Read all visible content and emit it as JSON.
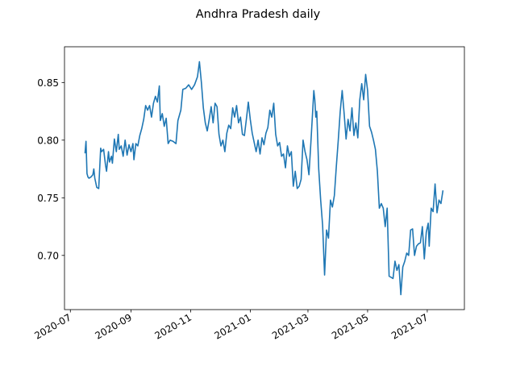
{
  "chart_data": {
    "type": "line",
    "title": "Andhra Pradesh daily",
    "xlabel": "",
    "ylabel": "",
    "x_range": [
      "2020-06-25",
      "2021-08-08"
    ],
    "ylim": [
      0.653,
      0.881
    ],
    "x_ticks": [
      "2020-07-01",
      "2020-09-01",
      "2020-11-01",
      "2021-01-01",
      "2021-03-01",
      "2021-05-01",
      "2021-07-01"
    ],
    "x_tick_labels": [
      "2020-07",
      "2020-09",
      "2020-11",
      "2021-01",
      "2021-03",
      "2021-05",
      "2021-07"
    ],
    "y_ticks": [
      0.7,
      0.75,
      0.8,
      0.85
    ],
    "y_tick_labels": [
      "0.70",
      "0.75",
      "0.80",
      "0.85"
    ],
    "grid": false,
    "legend": "none",
    "series": [
      {
        "color": "#1f77b4",
        "points": [
          [
            "2020-07-16",
            0.789
          ],
          [
            "2020-07-17",
            0.799
          ],
          [
            "2020-07-18",
            0.771
          ],
          [
            "2020-07-19",
            0.768
          ],
          [
            "2020-07-20",
            0.767
          ],
          [
            "2020-07-22",
            0.768
          ],
          [
            "2020-07-24",
            0.77
          ],
          [
            "2020-07-25",
            0.775
          ],
          [
            "2020-07-26",
            0.767
          ],
          [
            "2020-07-28",
            0.759
          ],
          [
            "2020-07-30",
            0.758
          ],
          [
            "2020-08-01",
            0.793
          ],
          [
            "2020-08-02",
            0.79
          ],
          [
            "2020-08-04",
            0.792
          ],
          [
            "2020-08-06",
            0.778
          ],
          [
            "2020-08-07",
            0.773
          ],
          [
            "2020-08-09",
            0.79
          ],
          [
            "2020-08-10",
            0.781
          ],
          [
            "2020-08-12",
            0.786
          ],
          [
            "2020-08-13",
            0.78
          ],
          [
            "2020-08-15",
            0.801
          ],
          [
            "2020-08-17",
            0.79
          ],
          [
            "2020-08-19",
            0.805
          ],
          [
            "2020-08-20",
            0.792
          ],
          [
            "2020-08-22",
            0.795
          ],
          [
            "2020-08-24",
            0.786
          ],
          [
            "2020-08-26",
            0.8
          ],
          [
            "2020-08-28",
            0.787
          ],
          [
            "2020-08-30",
            0.796
          ],
          [
            "2020-09-01",
            0.79
          ],
          [
            "2020-09-03",
            0.797
          ],
          [
            "2020-09-04",
            0.783
          ],
          [
            "2020-09-06",
            0.797
          ],
          [
            "2020-09-08",
            0.795
          ],
          [
            "2020-09-10",
            0.804
          ],
          [
            "2020-09-12",
            0.81
          ],
          [
            "2020-09-14",
            0.818
          ],
          [
            "2020-09-16",
            0.83
          ],
          [
            "2020-09-18",
            0.826
          ],
          [
            "2020-09-20",
            0.83
          ],
          [
            "2020-09-22",
            0.82
          ],
          [
            "2020-09-24",
            0.832
          ],
          [
            "2020-09-26",
            0.838
          ],
          [
            "2020-09-28",
            0.833
          ],
          [
            "2020-09-30",
            0.847
          ],
          [
            "2020-10-01",
            0.817
          ],
          [
            "2020-10-03",
            0.823
          ],
          [
            "2020-10-05",
            0.812
          ],
          [
            "2020-10-07",
            0.819
          ],
          [
            "2020-10-09",
            0.797
          ],
          [
            "2020-10-11",
            0.8
          ],
          [
            "2020-10-14",
            0.799
          ],
          [
            "2020-10-17",
            0.797
          ],
          [
            "2020-10-19",
            0.817
          ],
          [
            "2020-10-22",
            0.826
          ],
          [
            "2020-10-24",
            0.844
          ],
          [
            "2020-10-27",
            0.845
          ],
          [
            "2020-10-30",
            0.848
          ],
          [
            "2020-11-02",
            0.844
          ],
          [
            "2020-11-05",
            0.848
          ],
          [
            "2020-11-08",
            0.855
          ],
          [
            "2020-11-10",
            0.868
          ],
          [
            "2020-11-12",
            0.85
          ],
          [
            "2020-11-14",
            0.828
          ],
          [
            "2020-11-16",
            0.815
          ],
          [
            "2020-11-18",
            0.808
          ],
          [
            "2020-11-20",
            0.818
          ],
          [
            "2020-11-22",
            0.829
          ],
          [
            "2020-11-24",
            0.815
          ],
          [
            "2020-11-26",
            0.832
          ],
          [
            "2020-11-28",
            0.829
          ],
          [
            "2020-11-30",
            0.805
          ],
          [
            "2020-12-02",
            0.795
          ],
          [
            "2020-12-04",
            0.8
          ],
          [
            "2020-12-06",
            0.79
          ],
          [
            "2020-12-08",
            0.806
          ],
          [
            "2020-12-10",
            0.813
          ],
          [
            "2020-12-12",
            0.81
          ],
          [
            "2020-12-14",
            0.828
          ],
          [
            "2020-12-16",
            0.82
          ],
          [
            "2020-12-18",
            0.83
          ],
          [
            "2020-12-20",
            0.815
          ],
          [
            "2020-12-22",
            0.82
          ],
          [
            "2020-12-24",
            0.805
          ],
          [
            "2020-12-26",
            0.804
          ],
          [
            "2020-12-28",
            0.818
          ],
          [
            "2020-12-30",
            0.833
          ],
          [
            "2021-01-01",
            0.818
          ],
          [
            "2021-01-03",
            0.806
          ],
          [
            "2021-01-05",
            0.798
          ],
          [
            "2021-01-07",
            0.79
          ],
          [
            "2021-01-09",
            0.8
          ],
          [
            "2021-01-11",
            0.788
          ],
          [
            "2021-01-13",
            0.802
          ],
          [
            "2021-01-15",
            0.796
          ],
          [
            "2021-01-17",
            0.806
          ],
          [
            "2021-01-19",
            0.811
          ],
          [
            "2021-01-21",
            0.826
          ],
          [
            "2021-01-23",
            0.82
          ],
          [
            "2021-01-25",
            0.832
          ],
          [
            "2021-01-27",
            0.805
          ],
          [
            "2021-01-29",
            0.795
          ],
          [
            "2021-01-31",
            0.798
          ],
          [
            "2021-02-02",
            0.786
          ],
          [
            "2021-02-04",
            0.788
          ],
          [
            "2021-02-06",
            0.776
          ],
          [
            "2021-02-08",
            0.795
          ],
          [
            "2021-02-10",
            0.786
          ],
          [
            "2021-02-12",
            0.79
          ],
          [
            "2021-02-14",
            0.76
          ],
          [
            "2021-02-16",
            0.773
          ],
          [
            "2021-02-18",
            0.758
          ],
          [
            "2021-02-20",
            0.76
          ],
          [
            "2021-02-22",
            0.766
          ],
          [
            "2021-02-24",
            0.8
          ],
          [
            "2021-02-26",
            0.79
          ],
          [
            "2021-02-28",
            0.783
          ],
          [
            "2021-03-02",
            0.77
          ],
          [
            "2021-03-04",
            0.798
          ],
          [
            "2021-03-06",
            0.828
          ],
          [
            "2021-03-07",
            0.843
          ],
          [
            "2021-03-08",
            0.835
          ],
          [
            "2021-03-09",
            0.82
          ],
          [
            "2021-03-10",
            0.825
          ],
          [
            "2021-03-12",
            0.775
          ],
          [
            "2021-03-14",
            0.748
          ],
          [
            "2021-03-16",
            0.726
          ],
          [
            "2021-03-18",
            0.683
          ],
          [
            "2021-03-20",
            0.722
          ],
          [
            "2021-03-22",
            0.715
          ],
          [
            "2021-03-24",
            0.748
          ],
          [
            "2021-03-26",
            0.742
          ],
          [
            "2021-03-28",
            0.752
          ],
          [
            "2021-03-30",
            0.777
          ],
          [
            "2021-04-01",
            0.8
          ],
          [
            "2021-04-03",
            0.825
          ],
          [
            "2021-04-05",
            0.843
          ],
          [
            "2021-04-07",
            0.823
          ],
          [
            "2021-04-09",
            0.801
          ],
          [
            "2021-04-11",
            0.818
          ],
          [
            "2021-04-13",
            0.808
          ],
          [
            "2021-04-15",
            0.828
          ],
          [
            "2021-04-17",
            0.804
          ],
          [
            "2021-04-19",
            0.815
          ],
          [
            "2021-04-21",
            0.802
          ],
          [
            "2021-04-23",
            0.835
          ],
          [
            "2021-04-25",
            0.849
          ],
          [
            "2021-04-27",
            0.835
          ],
          [
            "2021-04-29",
            0.857
          ],
          [
            "2021-05-01",
            0.843
          ],
          [
            "2021-05-03",
            0.812
          ],
          [
            "2021-05-05",
            0.807
          ],
          [
            "2021-05-07",
            0.8
          ],
          [
            "2021-05-09",
            0.792
          ],
          [
            "2021-05-11",
            0.773
          ],
          [
            "2021-05-13",
            0.741
          ],
          [
            "2021-05-15",
            0.745
          ],
          [
            "2021-05-17",
            0.741
          ],
          [
            "2021-05-19",
            0.725
          ],
          [
            "2021-05-21",
            0.741
          ],
          [
            "2021-05-23",
            0.682
          ],
          [
            "2021-05-25",
            0.681
          ],
          [
            "2021-05-27",
            0.68
          ],
          [
            "2021-05-29",
            0.695
          ],
          [
            "2021-05-31",
            0.687
          ],
          [
            "2021-06-02",
            0.692
          ],
          [
            "2021-06-04",
            0.666
          ],
          [
            "2021-06-06",
            0.69
          ],
          [
            "2021-06-08",
            0.695
          ],
          [
            "2021-06-10",
            0.702
          ],
          [
            "2021-06-12",
            0.7
          ],
          [
            "2021-06-14",
            0.722
          ],
          [
            "2021-06-16",
            0.723
          ],
          [
            "2021-06-18",
            0.7
          ],
          [
            "2021-06-20",
            0.708
          ],
          [
            "2021-06-22",
            0.71
          ],
          [
            "2021-06-24",
            0.711
          ],
          [
            "2021-06-26",
            0.725
          ],
          [
            "2021-06-28",
            0.697
          ],
          [
            "2021-06-30",
            0.72
          ],
          [
            "2021-07-02",
            0.728
          ],
          [
            "2021-07-03",
            0.708
          ],
          [
            "2021-07-05",
            0.741
          ],
          [
            "2021-07-07",
            0.738
          ],
          [
            "2021-07-09",
            0.762
          ],
          [
            "2021-07-11",
            0.737
          ],
          [
            "2021-07-13",
            0.748
          ],
          [
            "2021-07-15",
            0.745
          ],
          [
            "2021-07-17",
            0.756
          ]
        ]
      }
    ]
  }
}
